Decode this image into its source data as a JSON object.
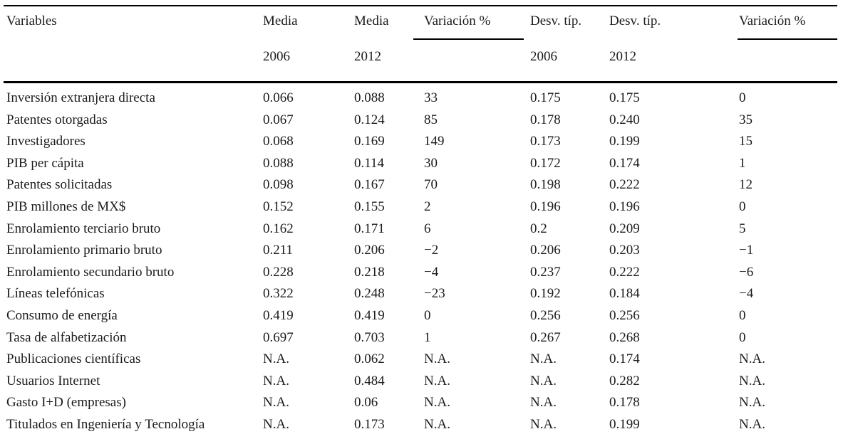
{
  "table": {
    "columns": [
      {
        "label": "Variables",
        "sub": "",
        "underlined": false
      },
      {
        "label": "Media",
        "sub": "2006",
        "underlined": false
      },
      {
        "label": "Media",
        "sub": "2012",
        "underlined": false
      },
      {
        "label": "Variación %",
        "sub": "",
        "underlined": true
      },
      {
        "label": "Desv. típ.",
        "sub": "2006",
        "underlined": false
      },
      {
        "label": "Desv. típ.",
        "sub": "2012",
        "underlined": false
      },
      {
        "label": "Variación %",
        "sub": "",
        "underlined": true
      }
    ],
    "rows": [
      {
        "cells": [
          "Inversión extranjera directa",
          "0.066",
          "0.088",
          "33",
          "0.175",
          "0.175",
          "0"
        ]
      },
      {
        "cells": [
          "Patentes otorgadas",
          "0.067",
          "0.124",
          "85",
          "0.178",
          "0.240",
          "35"
        ]
      },
      {
        "cells": [
          "Investigadores",
          "0.068",
          "0.169",
          "149",
          "0.173",
          "0.199",
          "15"
        ]
      },
      {
        "cells": [
          "PIB per cápita",
          "0.088",
          "0.114",
          "30",
          "0.172",
          "0.174",
          "1"
        ]
      },
      {
        "cells": [
          "Patentes solicitadas",
          "0.098",
          "0.167",
          "70",
          "0.198",
          "0.222",
          "12"
        ]
      },
      {
        "cells": [
          "PIB millones de MX$",
          "0.152",
          "0.155",
          "2",
          "0.196",
          "0.196",
          "0"
        ]
      },
      {
        "cells": [
          "Enrolamiento terciario bruto",
          "0.162",
          "0.171",
          "6",
          "0.2",
          "0.209",
          "5"
        ]
      },
      {
        "cells": [
          "Enrolamiento primario bruto",
          "0.211",
          "0.206",
          "−2",
          "0.206",
          "0.203",
          "−1"
        ]
      },
      {
        "cells": [
          "Enrolamiento secundario bruto",
          "0.228",
          "0.218",
          "−4",
          "0.237",
          "0.222",
          "−6"
        ]
      },
      {
        "cells": [
          "Líneas telefónicas",
          "0.322",
          "0.248",
          "−23",
          "0.192",
          "0.184",
          "−4"
        ]
      },
      {
        "cells": [
          "Consumo de energía",
          "0.419",
          "0.419",
          "0",
          "0.256",
          "0.256",
          "0"
        ]
      },
      {
        "cells": [
          "Tasa de alfabetización",
          "0.697",
          "0.703",
          "1",
          "0.267",
          "0.268",
          "0"
        ]
      },
      {
        "cells": [
          "Publicaciones científicas",
          "N.A.",
          "0.062",
          "N.A.",
          "N.A.",
          "0.174",
          "N.A."
        ]
      },
      {
        "cells": [
          "Usuarios Internet",
          "N.A.",
          "0.484",
          "N.A.",
          "N.A.",
          "0.282",
          "N.A."
        ]
      },
      {
        "cells": [
          "Gasto I+D (empresas)",
          "N.A.",
          "0.06",
          "N.A.",
          "N.A.",
          "0.178",
          "N.A."
        ]
      },
      {
        "cells": [
          "Titulados en Ingeniería y Tecnología",
          "N.A.",
          "0.173",
          "N.A.",
          "N.A.",
          "0.199",
          "N.A."
        ]
      }
    ]
  }
}
